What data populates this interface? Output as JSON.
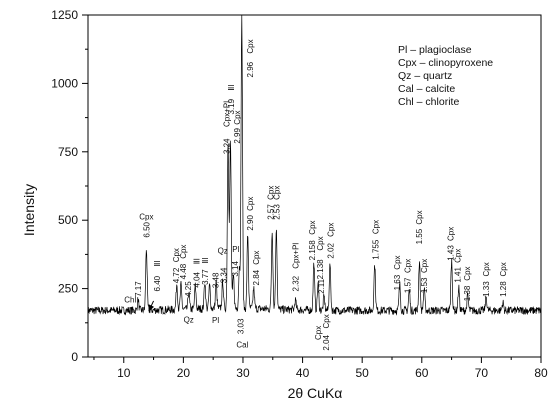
{
  "chart_data": {
    "type": "line",
    "title": "",
    "xlabel": "2θ CuKα",
    "ylabel": "Intensity",
    "xlim": [
      4,
      80
    ],
    "ylim": [
      0,
      1250
    ],
    "x_ticks": [
      10,
      20,
      30,
      40,
      50,
      60,
      70,
      80
    ],
    "y_ticks": [
      0,
      250,
      500,
      750,
      1000,
      1250
    ],
    "grid": false,
    "legend_position": "top-right",
    "legend": [
      "Pl – plagioclase",
      "Cpx – clinopyroxene",
      "Qz – quartz",
      "Cal – calcite",
      "Chl – chlorite"
    ],
    "series": [
      {
        "baseline": 170,
        "peaks": [
          {
            "x": 12.4,
            "y": 210
          },
          {
            "x": 13.8,
            "y": 395
          },
          {
            "x": 18.9,
            "y": 265
          },
          {
            "x": 19.6,
            "y": 260
          },
          {
            "x": 20.9,
            "y": 235
          },
          {
            "x": 22.0,
            "y": 255
          },
          {
            "x": 23.6,
            "y": 270
          },
          {
            "x": 24.4,
            "y": 255
          },
          {
            "x": 25.5,
            "y": 265
          },
          {
            "x": 26.6,
            "y": 270
          },
          {
            "x": 27.5,
            "y": 790
          },
          {
            "x": 27.9,
            "y": 780
          },
          {
            "x": 28.4,
            "y": 290
          },
          {
            "x": 29.4,
            "y": 320
          },
          {
            "x": 29.8,
            "y": 1250
          },
          {
            "x": 30.8,
            "y": 440
          },
          {
            "x": 31.8,
            "y": 245
          },
          {
            "x": 34.9,
            "y": 460
          },
          {
            "x": 35.6,
            "y": 470
          },
          {
            "x": 38.8,
            "y": 205
          },
          {
            "x": 41.9,
            "y": 345
          },
          {
            "x": 42.6,
            "y": 270
          },
          {
            "x": 43.6,
            "y": 220
          },
          {
            "x": 44.6,
            "y": 340
          },
          {
            "x": 52.1,
            "y": 340
          },
          {
            "x": 56.3,
            "y": 265
          },
          {
            "x": 57.9,
            "y": 245
          },
          {
            "x": 59.6,
            "y": 350
          },
          {
            "x": 60.4,
            "y": 250
          },
          {
            "x": 65.0,
            "y": 355
          },
          {
            "x": 66.2,
            "y": 255
          },
          {
            "x": 67.7,
            "y": 225
          },
          {
            "x": 70.8,
            "y": 220
          },
          {
            "x": 73.6,
            "y": 200
          }
        ]
      }
    ],
    "annotations": [
      {
        "text": "Chl",
        "x": 11.1,
        "y": 210,
        "rot": 0
      },
      {
        "text": "7.17",
        "x": 12.4,
        "y": 248,
        "rot": -90
      },
      {
        "text": "Cpx",
        "x": 13.8,
        "y": 513,
        "rot": 0
      },
      {
        "text": "6.50",
        "x": 13.8,
        "y": 465,
        "rot": -90
      },
      {
        "text": "ⅡI",
        "x": 15.6,
        "y": 342,
        "rot": -90
      },
      {
        "text": "6.40",
        "x": 15.6,
        "y": 268,
        "rot": -90
      },
      {
        "text": "4.72",
        "x": 18.8,
        "y": 298,
        "rot": -90
      },
      {
        "text": "Cpx",
        "x": 18.8,
        "y": 372,
        "rot": -90
      },
      {
        "text": "4.48",
        "x": 19.9,
        "y": 312,
        "rot": -90
      },
      {
        "text": "Cpx",
        "x": 19.9,
        "y": 385,
        "rot": -90
      },
      {
        "text": "4.25",
        "x": 20.8,
        "y": 248,
        "rot": -90
      },
      {
        "text": "Qz",
        "x": 20.9,
        "y": 137,
        "rot": 0
      },
      {
        "text": "4.04",
        "x": 22.2,
        "y": 282,
        "rot": -90
      },
      {
        "text": "ⅡI",
        "x": 22.2,
        "y": 350,
        "rot": -90
      },
      {
        "text": "3.77",
        "x": 23.6,
        "y": 292,
        "rot": -90
      },
      {
        "text": "ⅡI",
        "x": 23.6,
        "y": 353,
        "rot": -90
      },
      {
        "text": "3.48",
        "x": 25.4,
        "y": 280,
        "rot": -90
      },
      {
        "text": "Pl",
        "x": 25.4,
        "y": 135,
        "rot": 0
      },
      {
        "text": "3.34",
        "x": 26.7,
        "y": 298,
        "rot": -90
      },
      {
        "text": "Qz",
        "x": 26.6,
        "y": 390,
        "rot": 0
      },
      {
        "text": "3.24",
        "x": 27.2,
        "y": 770,
        "rot": -90
      },
      {
        "text": "Cpx+Pl",
        "x": 27.2,
        "y": 888,
        "rot": -90
      },
      {
        "text": "3.19",
        "x": 28.0,
        "y": 915,
        "rot": -90
      },
      {
        "text": "ⅡI",
        "x": 28.0,
        "y": 985,
        "rot": -90
      },
      {
        "text": "2.99",
        "x": 29.0,
        "y": 808,
        "rot": -90
      },
      {
        "text": "Cpx",
        "x": 29.0,
        "y": 875,
        "rot": -90
      },
      {
        "text": "3.14",
        "x": 28.7,
        "y": 322,
        "rot": -90
      },
      {
        "text": "Pl",
        "x": 28.8,
        "y": 395,
        "rot": 0
      },
      {
        "text": "3.03",
        "x": 29.6,
        "y": 112,
        "rot": -90
      },
      {
        "text": "Cal",
        "x": 29.9,
        "y": 45,
        "rot": 0
      },
      {
        "text": "2.96",
        "x": 31.2,
        "y": 1050,
        "rot": -90
      },
      {
        "text": "Cpx",
        "x": 31.2,
        "y": 1135,
        "rot": -90
      },
      {
        "text": "2.90",
        "x": 31.2,
        "y": 490,
        "rot": -90
      },
      {
        "text": "Cpx",
        "x": 31.2,
        "y": 560,
        "rot": -90
      },
      {
        "text": "2.84",
        "x": 32.2,
        "y": 290,
        "rot": -90
      },
      {
        "text": "Cpx",
        "x": 32.2,
        "y": 363,
        "rot": -90
      },
      {
        "text": "2.57",
        "x": 34.6,
        "y": 530,
        "rot": -90
      },
      {
        "text": "Cpx",
        "x": 34.6,
        "y": 600,
        "rot": -90
      },
      {
        "text": "2.53",
        "x": 35.6,
        "y": 530,
        "rot": -90
      },
      {
        "text": "Cpx",
        "x": 35.6,
        "y": 600,
        "rot": -90
      },
      {
        "text": "2.32",
        "x": 38.8,
        "y": 268,
        "rot": -90
      },
      {
        "text": "Cpx+Pl",
        "x": 38.8,
        "y": 370,
        "rot": -90
      },
      {
        "text": "2.158",
        "x": 41.6,
        "y": 390,
        "rot": -90
      },
      {
        "text": "Cpx",
        "x": 41.6,
        "y": 473,
        "rot": -90
      },
      {
        "text": "2.138",
        "x": 42.9,
        "y": 320,
        "rot": -90
      },
      {
        "text": "Cpx",
        "x": 42.9,
        "y": 415,
        "rot": -90
      },
      {
        "text": "2.11",
        "x": 43.1,
        "y": 258,
        "rot": -90
      },
      {
        "text": "2.02",
        "x": 44.7,
        "y": 388,
        "rot": -90
      },
      {
        "text": "Cpx",
        "x": 44.7,
        "y": 465,
        "rot": -90
      },
      {
        "text": "Cpx",
        "x": 42.6,
        "y": 88,
        "rot": -90
      },
      {
        "text": "Cpx",
        "x": 43.9,
        "y": 130,
        "rot": -90
      },
      {
        "text": "2.04",
        "x": 43.9,
        "y": 52,
        "rot": -90
      },
      {
        "text": "1.755",
        "x": 52.2,
        "y": 392,
        "rot": -90
      },
      {
        "text": "Cpx",
        "x": 52.2,
        "y": 475,
        "rot": -90
      },
      {
        "text": "1.63",
        "x": 55.8,
        "y": 272,
        "rot": -90
      },
      {
        "text": "Cpx",
        "x": 55.8,
        "y": 345,
        "rot": -90
      },
      {
        "text": "1.57",
        "x": 57.6,
        "y": 262,
        "rot": -90
      },
      {
        "text": "Cpx",
        "x": 57.6,
        "y": 333,
        "rot": -90
      },
      {
        "text": "1.55",
        "x": 59.5,
        "y": 440,
        "rot": -90
      },
      {
        "text": "Cpx",
        "x": 59.5,
        "y": 510,
        "rot": -90
      },
      {
        "text": "1.53",
        "x": 60.4,
        "y": 262,
        "rot": -90
      },
      {
        "text": "Cpx",
        "x": 60.4,
        "y": 333,
        "rot": -90
      },
      {
        "text": "1.43",
        "x": 64.8,
        "y": 380,
        "rot": -90
      },
      {
        "text": "Cpx",
        "x": 64.8,
        "y": 450,
        "rot": -90
      },
      {
        "text": "1.41",
        "x": 66.0,
        "y": 300,
        "rot": -90
      },
      {
        "text": "Cpx",
        "x": 66.0,
        "y": 370,
        "rot": -90
      },
      {
        "text": "1.38",
        "x": 67.6,
        "y": 232,
        "rot": -90
      },
      {
        "text": "Cpx",
        "x": 67.6,
        "y": 305,
        "rot": -90
      },
      {
        "text": "1.33",
        "x": 70.8,
        "y": 248,
        "rot": -90
      },
      {
        "text": "Cpx",
        "x": 70.8,
        "y": 320,
        "rot": -90
      },
      {
        "text": "1.28",
        "x": 73.6,
        "y": 248,
        "rot": -90
      },
      {
        "text": "Cpx",
        "x": 73.6,
        "y": 320,
        "rot": -90
      }
    ],
    "arrow": {
      "from": [
        15.0,
        205
      ],
      "to": [
        14.2,
        168
      ]
    }
  }
}
